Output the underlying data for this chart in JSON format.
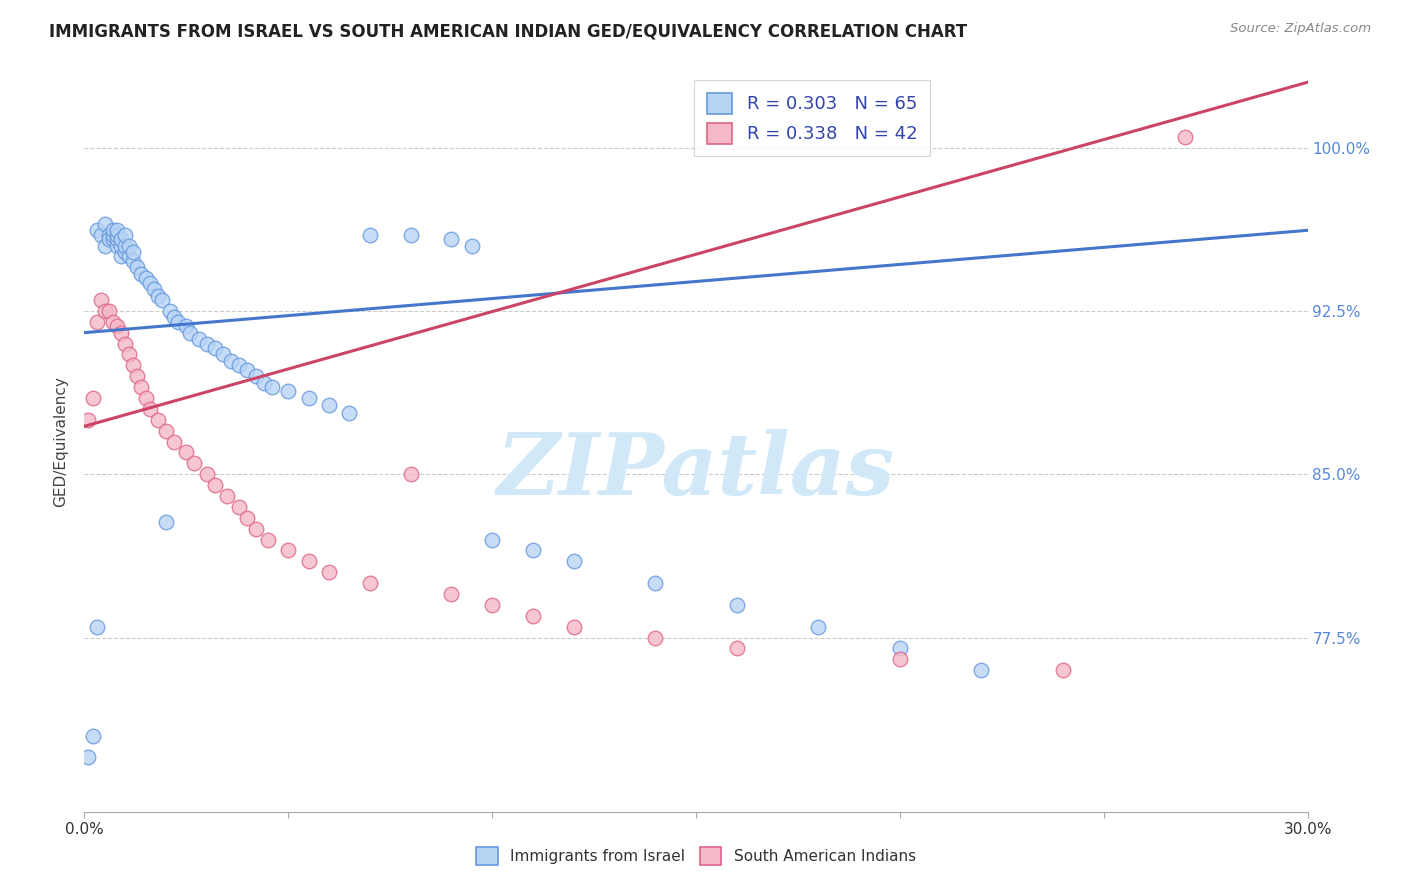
{
  "title": "IMMIGRANTS FROM ISRAEL VS SOUTH AMERICAN INDIAN GED/EQUIVALENCY CORRELATION CHART",
  "source": "Source: ZipAtlas.com",
  "ylabel": "GED/Equivalency",
  "R1": 0.303,
  "N1": 65,
  "R2": 0.338,
  "N2": 42,
  "color_israel_fill": "#b8d4f5",
  "color_israel_edge": "#6699dd",
  "color_sa_fill": "#f5b8c8",
  "color_sa_edge": "#dd6688",
  "color_line_israel": "#4477cc",
  "color_line_sa": "#cc4466",
  "legend1_label": "Immigrants from Israel",
  "legend2_label": "South American Indians",
  "xmin": 0.0,
  "xmax": 0.3,
  "ymin": 0.695,
  "ymax": 1.035,
  "ytick_vals": [
    0.775,
    0.85,
    0.925,
    1.0
  ],
  "ytick_labels": [
    "77.5%",
    "85.0%",
    "92.5%",
    "100.0%"
  ],
  "xtick_positions": [
    0.0,
    0.05,
    0.1,
    0.15,
    0.2,
    0.25,
    0.3
  ],
  "background_color": "#ffffff",
  "grid_color": "#cccccc",
  "israel_x": [
    0.001,
    0.002,
    0.003,
    0.003,
    0.004,
    0.005,
    0.005,
    0.006,
    0.006,
    0.007,
    0.007,
    0.007,
    0.008,
    0.008,
    0.008,
    0.008,
    0.009,
    0.009,
    0.009,
    0.01,
    0.01,
    0.01,
    0.011,
    0.011,
    0.012,
    0.012,
    0.013,
    0.014,
    0.015,
    0.016,
    0.017,
    0.018,
    0.019,
    0.02,
    0.021,
    0.022,
    0.023,
    0.025,
    0.026,
    0.028,
    0.03,
    0.032,
    0.034,
    0.036,
    0.038,
    0.04,
    0.042,
    0.044,
    0.046,
    0.05,
    0.055,
    0.06,
    0.065,
    0.07,
    0.08,
    0.09,
    0.095,
    0.1,
    0.11,
    0.12,
    0.14,
    0.16,
    0.18,
    0.2,
    0.22
  ],
  "israel_y": [
    0.72,
    0.73,
    0.78,
    0.962,
    0.96,
    0.955,
    0.965,
    0.96,
    0.958,
    0.958,
    0.96,
    0.962,
    0.955,
    0.958,
    0.96,
    0.962,
    0.95,
    0.955,
    0.958,
    0.952,
    0.955,
    0.96,
    0.95,
    0.955,
    0.948,
    0.952,
    0.945,
    0.942,
    0.94,
    0.938,
    0.935,
    0.932,
    0.93,
    0.828,
    0.925,
    0.922,
    0.92,
    0.918,
    0.915,
    0.912,
    0.91,
    0.908,
    0.905,
    0.902,
    0.9,
    0.898,
    0.895,
    0.892,
    0.89,
    0.888,
    0.885,
    0.882,
    0.878,
    0.96,
    0.96,
    0.958,
    0.955,
    0.82,
    0.815,
    0.81,
    0.8,
    0.79,
    0.78,
    0.77,
    0.76
  ],
  "sa_x": [
    0.001,
    0.002,
    0.003,
    0.004,
    0.005,
    0.006,
    0.007,
    0.008,
    0.009,
    0.01,
    0.011,
    0.012,
    0.013,
    0.014,
    0.015,
    0.016,
    0.018,
    0.02,
    0.022,
    0.025,
    0.027,
    0.03,
    0.032,
    0.035,
    0.038,
    0.04,
    0.042,
    0.045,
    0.05,
    0.055,
    0.06,
    0.07,
    0.08,
    0.09,
    0.1,
    0.11,
    0.12,
    0.14,
    0.16,
    0.2,
    0.24,
    0.27
  ],
  "sa_y": [
    0.875,
    0.885,
    0.92,
    0.93,
    0.925,
    0.925,
    0.92,
    0.918,
    0.915,
    0.91,
    0.905,
    0.9,
    0.895,
    0.89,
    0.885,
    0.88,
    0.875,
    0.87,
    0.865,
    0.86,
    0.855,
    0.85,
    0.845,
    0.84,
    0.835,
    0.83,
    0.825,
    0.82,
    0.815,
    0.81,
    0.805,
    0.8,
    0.85,
    0.795,
    0.79,
    0.785,
    0.78,
    0.775,
    0.77,
    0.765,
    0.76,
    1.005
  ],
  "line1_x0": 0.0,
  "line1_y0": 0.915,
  "line1_x1": 0.3,
  "line1_y1": 0.962,
  "line2_x0": 0.0,
  "line2_y0": 0.872,
  "line2_x1": 0.3,
  "line2_y1": 1.03,
  "watermark_text": "ZIPatlas",
  "watermark_color": "#d0e8f8"
}
